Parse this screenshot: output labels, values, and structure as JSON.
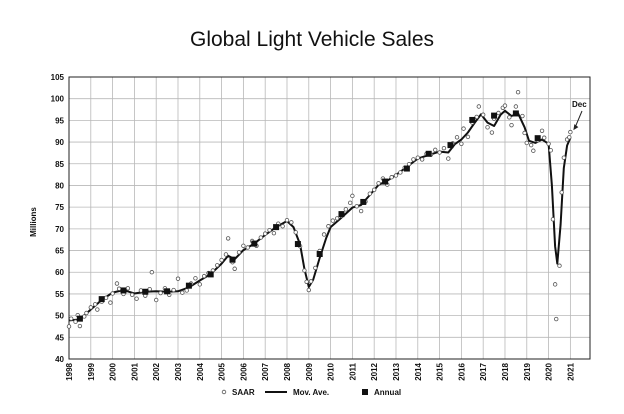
{
  "chart_data": {
    "type": "line",
    "title": "Global Light Vehicle Sales",
    "ylabel": "Millions",
    "xlabel": "",
    "xlim": [
      1998,
      2021.9
    ],
    "ylim": [
      40,
      105
    ],
    "yticks": [
      "40",
      "45",
      "50",
      "55",
      "60",
      "65",
      "70",
      "75",
      "80",
      "85",
      "90",
      "95",
      "100",
      "105"
    ],
    "xticks": [
      "1998",
      "1999",
      "2000",
      "2001",
      "2002",
      "2003",
      "2004",
      "2005",
      "2006",
      "2007",
      "2008",
      "2009",
      "2010",
      "2011",
      "2012",
      "2013",
      "2014",
      "2015",
      "2016",
      "2017",
      "2018",
      "2019",
      "2020",
      "2021"
    ],
    "grid": true,
    "legend_position": "bottom",
    "series": [
      {
        "name": "SAAR",
        "style": "open-circle",
        "points": [
          [
            1998.0,
            47.5
          ],
          [
            1998.1,
            49.3
          ],
          [
            1998.3,
            48.6
          ],
          [
            1998.4,
            50.1
          ],
          [
            1998.5,
            47.6
          ],
          [
            1998.7,
            49.8
          ],
          [
            1998.8,
            50.6
          ],
          [
            1999.0,
            51.9
          ],
          [
            1999.2,
            52.6
          ],
          [
            1999.3,
            51.4
          ],
          [
            1999.5,
            53.2
          ],
          [
            1999.7,
            54.1
          ],
          [
            1999.9,
            53.0
          ],
          [
            2000.0,
            55.1
          ],
          [
            2000.2,
            57.4
          ],
          [
            2000.3,
            56.2
          ],
          [
            2000.5,
            55.0
          ],
          [
            2000.7,
            56.3
          ],
          [
            2000.9,
            54.8
          ],
          [
            2001.1,
            53.9
          ],
          [
            2001.3,
            55.8
          ],
          [
            2001.5,
            54.6
          ],
          [
            2001.7,
            56.1
          ],
          [
            2001.8,
            60.0
          ],
          [
            2002.0,
            53.6
          ],
          [
            2002.2,
            55.2
          ],
          [
            2002.4,
            56.3
          ],
          [
            2002.6,
            54.8
          ],
          [
            2002.8,
            55.9
          ],
          [
            2003.0,
            58.5
          ],
          [
            2003.2,
            55.3
          ],
          [
            2003.4,
            55.8
          ],
          [
            2003.6,
            57.4
          ],
          [
            2003.8,
            58.6
          ],
          [
            2004.0,
            57.2
          ],
          [
            2004.2,
            59.1
          ],
          [
            2004.4,
            59.8
          ],
          [
            2004.6,
            60.4
          ],
          [
            2004.8,
            61.6
          ],
          [
            2005.0,
            62.8
          ],
          [
            2005.2,
            64.1
          ],
          [
            2005.3,
            67.8
          ],
          [
            2005.5,
            62.3
          ],
          [
            2005.6,
            60.8
          ],
          [
            2005.8,
            64.6
          ],
          [
            2006.0,
            66.1
          ],
          [
            2006.2,
            65.7
          ],
          [
            2006.4,
            67.2
          ],
          [
            2006.6,
            66.1
          ],
          [
            2006.8,
            68.0
          ],
          [
            2007.0,
            68.9
          ],
          [
            2007.2,
            69.7
          ],
          [
            2007.4,
            69.0
          ],
          [
            2007.6,
            71.2
          ],
          [
            2007.8,
            70.6
          ],
          [
            2008.0,
            72.0
          ],
          [
            2008.2,
            71.5
          ],
          [
            2008.4,
            69.2
          ],
          [
            2008.6,
            66.0
          ],
          [
            2008.8,
            60.4
          ],
          [
            2008.9,
            57.8
          ],
          [
            2009.0,
            55.9
          ],
          [
            2009.1,
            57.9
          ],
          [
            2009.3,
            61.0
          ],
          [
            2009.5,
            64.9
          ],
          [
            2009.7,
            68.7
          ],
          [
            2009.9,
            70.6
          ],
          [
            2010.1,
            71.9
          ],
          [
            2010.3,
            72.4
          ],
          [
            2010.5,
            73.0
          ],
          [
            2010.7,
            74.5
          ],
          [
            2010.9,
            76.0
          ],
          [
            2011.0,
            77.6
          ],
          [
            2011.2,
            75.2
          ],
          [
            2011.4,
            74.1
          ],
          [
            2011.6,
            76.3
          ],
          [
            2011.8,
            78.1
          ],
          [
            2012.0,
            79.0
          ],
          [
            2012.2,
            80.5
          ],
          [
            2012.4,
            81.6
          ],
          [
            2012.6,
            80.2
          ],
          [
            2012.8,
            81.9
          ],
          [
            2013.0,
            82.3
          ],
          [
            2013.2,
            83.0
          ],
          [
            2013.4,
            84.1
          ],
          [
            2013.6,
            84.9
          ],
          [
            2013.8,
            86.0
          ],
          [
            2014.0,
            86.4
          ],
          [
            2014.2,
            86.0
          ],
          [
            2014.4,
            87.3
          ],
          [
            2014.6,
            87.1
          ],
          [
            2014.8,
            88.2
          ],
          [
            2015.0,
            87.6
          ],
          [
            2015.2,
            88.6
          ],
          [
            2015.4,
            86.2
          ],
          [
            2015.6,
            89.7
          ],
          [
            2015.8,
            91.1
          ],
          [
            2016.0,
            89.6
          ],
          [
            2016.1,
            93.1
          ],
          [
            2016.3,
            91.2
          ],
          [
            2016.5,
            94.5
          ],
          [
            2016.7,
            95.8
          ],
          [
            2016.8,
            98.2
          ],
          [
            2017.0,
            96.3
          ],
          [
            2017.2,
            93.4
          ],
          [
            2017.4,
            92.2
          ],
          [
            2017.5,
            95.4
          ],
          [
            2017.7,
            96.7
          ],
          [
            2017.9,
            97.9
          ],
          [
            2018.0,
            98.4
          ],
          [
            2018.2,
            95.7
          ],
          [
            2018.3,
            93.9
          ],
          [
            2018.5,
            98.2
          ],
          [
            2018.6,
            101.5
          ],
          [
            2018.8,
            96.0
          ],
          [
            2018.9,
            92.1
          ],
          [
            2019.0,
            89.8
          ],
          [
            2019.2,
            89.3
          ],
          [
            2019.3,
            88.0
          ],
          [
            2019.5,
            90.4
          ],
          [
            2019.7,
            92.6
          ],
          [
            2019.8,
            91.0
          ],
          [
            2020.0,
            89.6
          ],
          [
            2020.1,
            88.1
          ],
          [
            2020.2,
            72.2
          ],
          [
            2020.3,
            57.2
          ],
          [
            2020.35,
            49.2
          ],
          [
            2020.5,
            61.5
          ],
          [
            2020.6,
            78.4
          ],
          [
            2020.7,
            86.4
          ],
          [
            2020.85,
            90.6
          ],
          [
            2020.95,
            91.1
          ],
          [
            2021.0,
            92.3
          ]
        ]
      },
      {
        "name": "Mov. Ave.",
        "style": "thick-line",
        "points": [
          [
            1998.0,
            48.9
          ],
          [
            1998.5,
            49.1
          ],
          [
            1999.0,
            51.4
          ],
          [
            1999.5,
            53.6
          ],
          [
            2000.0,
            55.3
          ],
          [
            2000.5,
            55.9
          ],
          [
            2001.0,
            55.1
          ],
          [
            2001.5,
            55.5
          ],
          [
            2002.0,
            55.6
          ],
          [
            2002.5,
            55.5
          ],
          [
            2003.0,
            55.6
          ],
          [
            2003.5,
            56.5
          ],
          [
            2004.0,
            58.1
          ],
          [
            2004.5,
            59.6
          ],
          [
            2005.0,
            62.0
          ],
          [
            2005.3,
            63.8
          ],
          [
            2005.6,
            63.0
          ],
          [
            2006.0,
            65.1
          ],
          [
            2006.5,
            66.6
          ],
          [
            2007.0,
            68.6
          ],
          [
            2007.5,
            70.4
          ],
          [
            2008.0,
            71.8
          ],
          [
            2008.3,
            70.4
          ],
          [
            2008.6,
            66.4
          ],
          [
            2008.8,
            60.8
          ],
          [
            2009.0,
            56.6
          ],
          [
            2009.2,
            58.3
          ],
          [
            2009.5,
            63.3
          ],
          [
            2009.8,
            67.9
          ],
          [
            2010.0,
            70.4
          ],
          [
            2010.5,
            72.6
          ],
          [
            2011.0,
            74.9
          ],
          [
            2011.4,
            75.5
          ],
          [
            2011.8,
            77.8
          ],
          [
            2012.2,
            80.1
          ],
          [
            2012.6,
            81.1
          ],
          [
            2013.0,
            82.4
          ],
          [
            2013.5,
            84.3
          ],
          [
            2014.0,
            86.2
          ],
          [
            2014.5,
            87.0
          ],
          [
            2015.0,
            87.8
          ],
          [
            2015.4,
            87.6
          ],
          [
            2015.7,
            89.5
          ],
          [
            2016.0,
            90.6
          ],
          [
            2016.3,
            92.2
          ],
          [
            2016.6,
            94.4
          ],
          [
            2016.9,
            96.4
          ],
          [
            2017.2,
            94.5
          ],
          [
            2017.5,
            93.7
          ],
          [
            2017.8,
            96.3
          ],
          [
            2018.0,
            97.2
          ],
          [
            2018.3,
            96.0
          ],
          [
            2018.6,
            96.6
          ],
          [
            2018.9,
            93.4
          ],
          [
            2019.1,
            90.3
          ],
          [
            2019.4,
            89.8
          ],
          [
            2019.7,
            90.6
          ],
          [
            2020.0,
            89.6
          ],
          [
            2020.15,
            80.0
          ],
          [
            2020.3,
            66.0
          ],
          [
            2020.4,
            62.0
          ],
          [
            2020.55,
            71.0
          ],
          [
            2020.7,
            84.0
          ],
          [
            2020.85,
            89.2
          ],
          [
            2021.0,
            91.0
          ]
        ]
      },
      {
        "name": "Annual",
        "style": "filled-square",
        "points": [
          [
            1998.5,
            49.3
          ],
          [
            1999.5,
            53.8
          ],
          [
            2000.5,
            55.8
          ],
          [
            2001.5,
            55.5
          ],
          [
            2002.5,
            55.6
          ],
          [
            2003.5,
            56.9
          ],
          [
            2004.5,
            59.5
          ],
          [
            2005.5,
            62.9
          ],
          [
            2006.5,
            66.6
          ],
          [
            2007.5,
            70.4
          ],
          [
            2008.5,
            66.5
          ],
          [
            2009.5,
            64.2
          ],
          [
            2010.5,
            73.4
          ],
          [
            2011.5,
            76.2
          ],
          [
            2012.5,
            80.9
          ],
          [
            2013.5,
            83.9
          ],
          [
            2014.5,
            87.3
          ],
          [
            2015.5,
            89.3
          ],
          [
            2016.5,
            95.1
          ],
          [
            2017.5,
            96.1
          ],
          [
            2018.5,
            96.6
          ],
          [
            2019.5,
            90.9
          ]
        ]
      }
    ],
    "annotations": [
      {
        "text": "Dec",
        "x": 2021.0,
        "y": 92.3
      }
    ]
  }
}
